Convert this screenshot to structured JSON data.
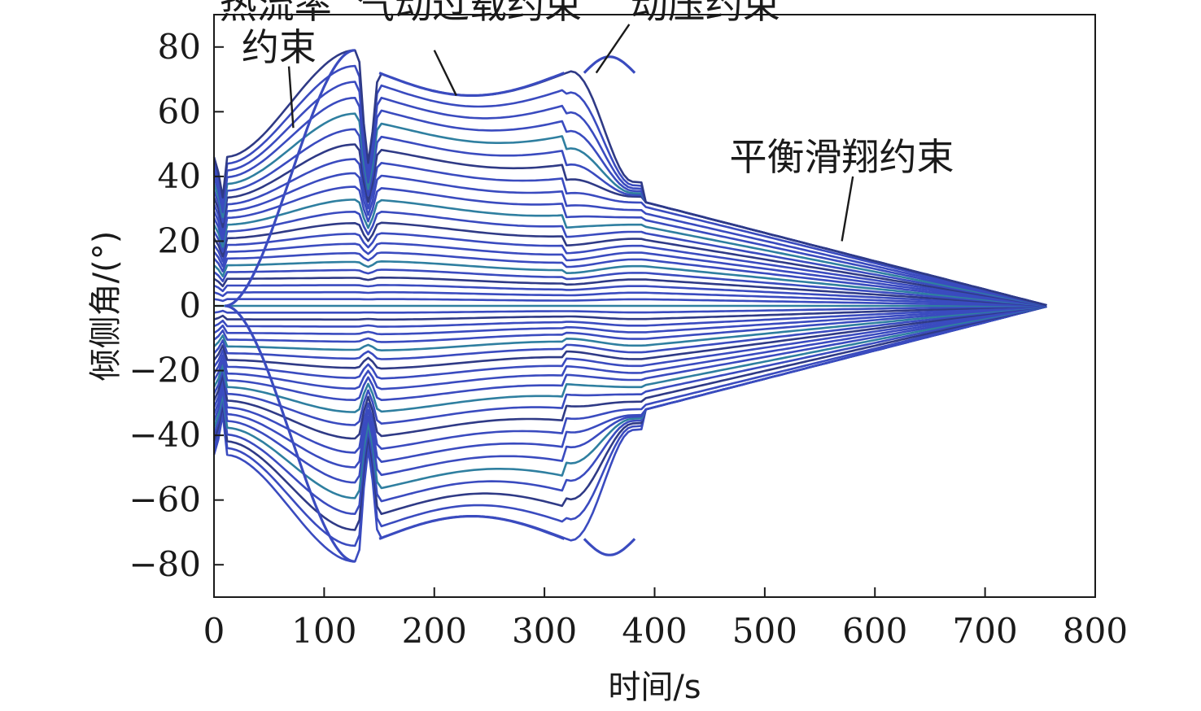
{
  "chart_data": {
    "type": "line",
    "xlabel": "时间/s",
    "ylabel": "倾侧角/(°)",
    "xlim": [
      0,
      800
    ],
    "ylim": [
      -90,
      90
    ],
    "xticks": [
      "0",
      "100",
      "200",
      "300",
      "400",
      "500",
      "600",
      "700",
      "800"
    ],
    "yticks": [
      "−80",
      "−60",
      "−40",
      "−20",
      "0",
      "20",
      "40",
      "60",
      "80"
    ],
    "grid": false,
    "legend": "none",
    "colors": {
      "main": "#3a4bbf",
      "dark": "#2f3a86",
      "teal": "#2f7fa0",
      "axis": "#1a1a1a"
    },
    "annotations": [
      {
        "text": "热流率",
        "x": 5,
        "y": 93
      },
      {
        "text": "约束",
        "x": 25,
        "y": 80
      },
      {
        "text": "气动过载约束",
        "x": 130,
        "y": 93
      },
      {
        "text": "动压约束",
        "x": 378,
        "y": 93
      },
      {
        "text": "平衡滑翔约束",
        "x": 468,
        "y": 46
      }
    ],
    "leaders": [
      {
        "from": [
          68,
          74
        ],
        "to": [
          72,
          55
        ]
      },
      {
        "from": [
          200,
          79
        ],
        "to": [
          220,
          65
        ]
      },
      {
        "from": [
          377,
          87
        ],
        "to": [
          347,
          72
        ]
      },
      {
        "from": [
          580,
          40
        ],
        "to": [
          570,
          20
        ]
      }
    ],
    "trajectory_family": {
      "count": 45,
      "initial_bank_range": [
        -46,
        46
      ],
      "end_time": 758,
      "end_bank": 0,
      "phases": [
        {
          "name": "热流率约束",
          "t_start": 0,
          "t_end": 130,
          "peak": 79
        },
        {
          "name": "气动过载约束",
          "t_start": 135,
          "t_end": 320,
          "peak": 72
        },
        {
          "name": "动压约束",
          "t_start": 320,
          "t_end": 392,
          "peak": 77
        },
        {
          "name": "平衡滑翔约束",
          "t_start": 392,
          "t_end": 758,
          "peak": 32
        }
      ]
    }
  }
}
